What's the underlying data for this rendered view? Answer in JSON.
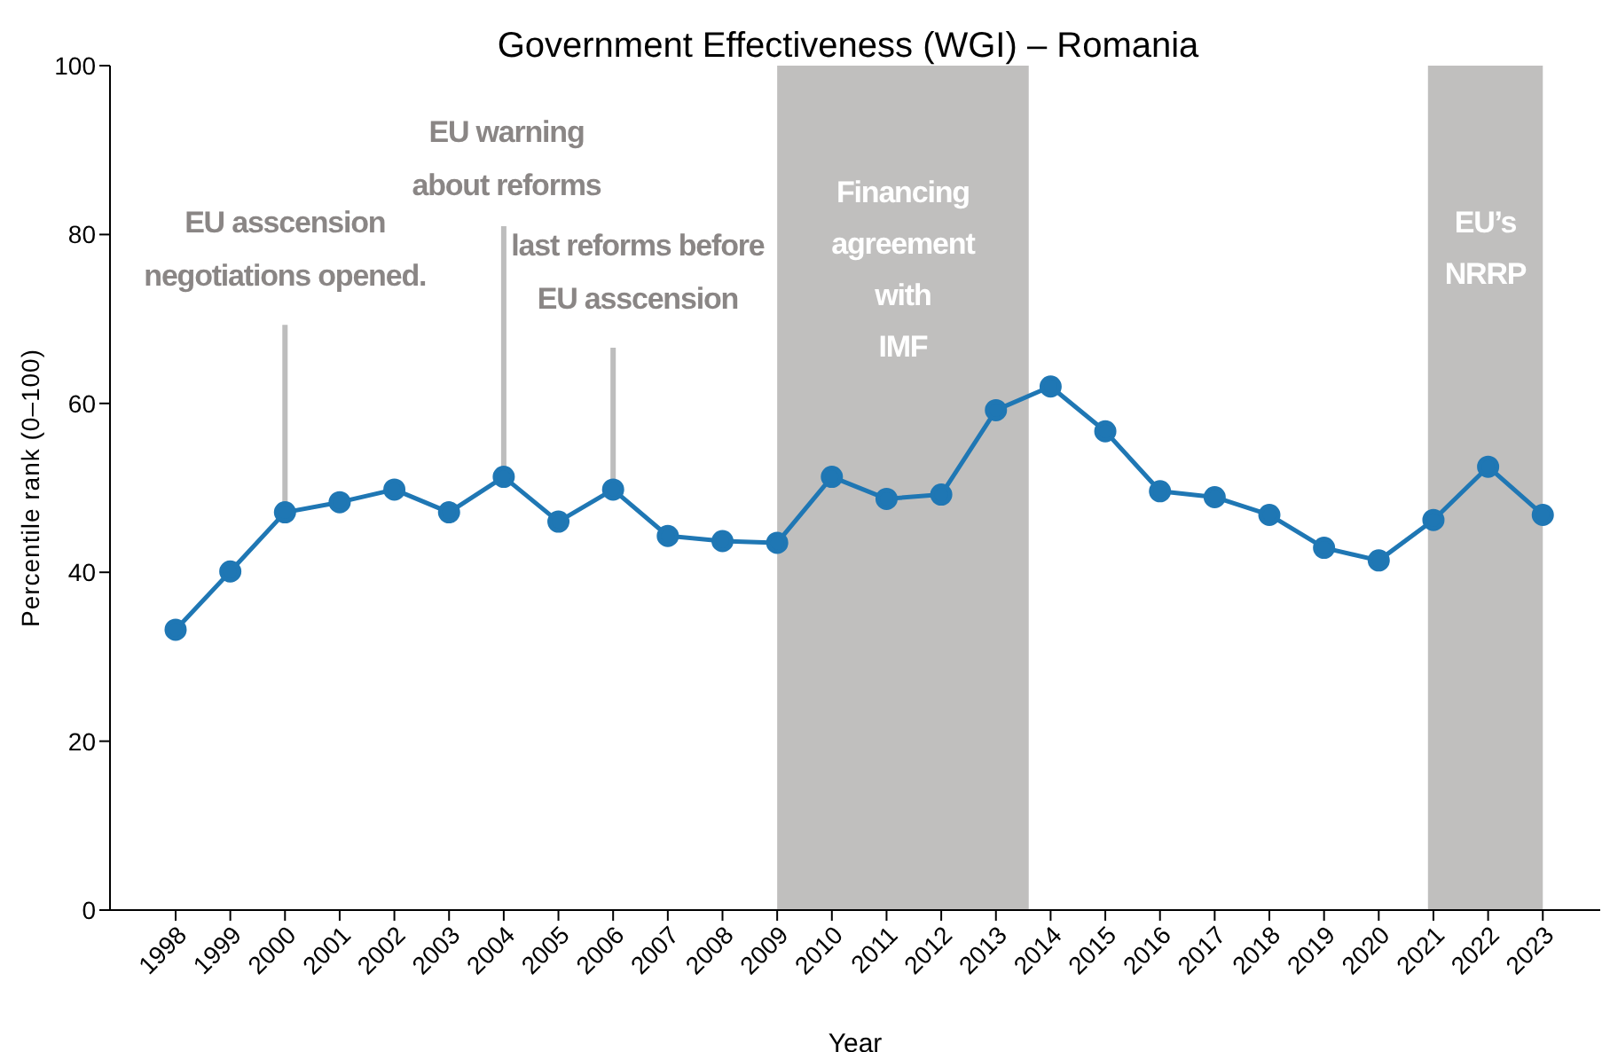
{
  "chart_data": {
    "type": "line",
    "title": "Government Effectiveness (WGI) – Romania",
    "xlabel": "Year",
    "ylabel": "Percentile rank (0–100)",
    "x": [
      1998,
      1999,
      2000,
      2001,
      2002,
      2003,
      2004,
      2005,
      2006,
      2007,
      2008,
      2009,
      2010,
      2011,
      2012,
      2013,
      2014,
      2015,
      2016,
      2017,
      2018,
      2019,
      2020,
      2021,
      2022,
      2023
    ],
    "series": [
      {
        "color": "#1f77b4",
        "values": [
          33.2,
          40.1,
          47.1,
          48.3,
          49.8,
          47.1,
          51.3,
          46.0,
          49.8,
          44.3,
          43.7,
          43.5,
          51.3,
          48.7,
          49.2,
          59.2,
          62.0,
          56.7,
          49.6,
          48.9,
          46.8,
          42.9,
          41.4,
          46.2,
          52.5,
          46.8
        ]
      }
    ],
    "xlim": [
      1996.8,
      2024.05
    ],
    "xticks": [
      1998,
      1999,
      2000,
      2001,
      2002,
      2003,
      2004,
      2005,
      2006,
      2007,
      2008,
      2009,
      2010,
      2011,
      2012,
      2013,
      2014,
      2015,
      2016,
      2017,
      2018,
      2019,
      2020,
      2021,
      2022,
      2023
    ],
    "ylim": [
      0,
      100
    ],
    "yticks": [
      0,
      20,
      40,
      60,
      80,
      100
    ],
    "bands": [
      {
        "axis": "x",
        "from": 2009,
        "to": 2013.6,
        "label": "Financing agreement with IMF",
        "color": "#c0bfbe"
      },
      {
        "axis": "x",
        "from": 2020.9,
        "to": 2023,
        "label": "EU’s NRRP",
        "color": "#c0bfbe"
      }
    ],
    "annotations": [
      {
        "text": "EU asscension negotiations opened.",
        "x": 2000,
        "y": 47.1
      },
      {
        "text": "EU warning about reforms",
        "x": 2004,
        "y": 51.3
      },
      {
        "text": "last reforms before EU asscension",
        "x": 2006,
        "y": 49.8
      }
    ],
    "marker": "circle",
    "line_style": "solid"
  }
}
